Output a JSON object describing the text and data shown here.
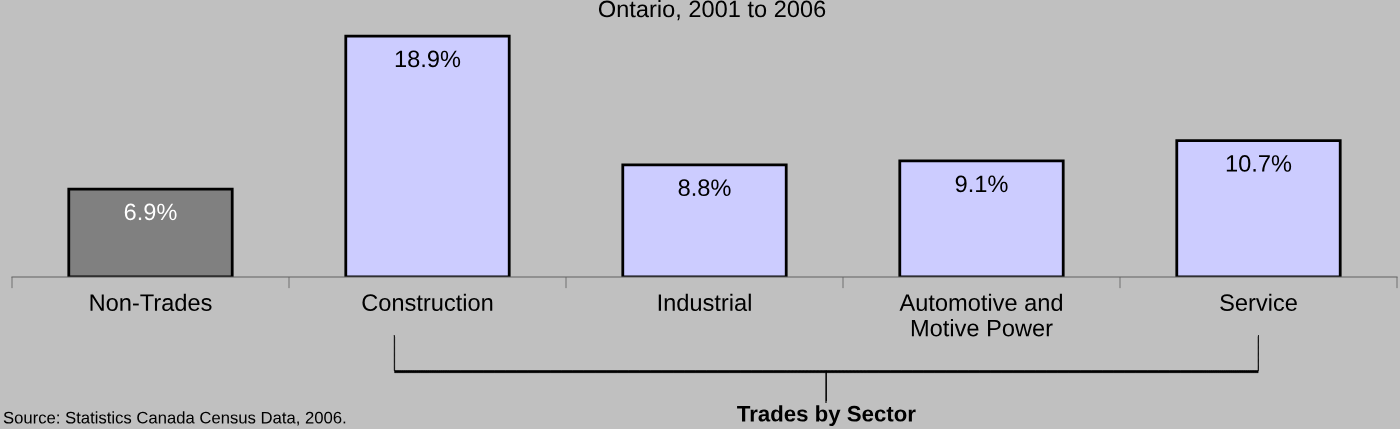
{
  "chart_data": {
    "type": "bar",
    "title": "Ontario, 2001 to 2006",
    "xlabel": "Trades by Sector",
    "categories": [
      "Non-Trades",
      "Construction",
      "Industrial",
      "Automotive and\nMotive Power",
      "Service"
    ],
    "values": [
      6.9,
      18.9,
      8.8,
      9.1,
      10.7
    ],
    "colors": [
      "#808080",
      "#ccccff",
      "#ccccff",
      "#ccccff",
      "#ccccff"
    ],
    "value_labels": [
      "6.9%",
      "18.9%",
      "8.8%",
      "9.1%",
      "10.7%"
    ],
    "annotations": [
      "Source: Statistics Canada Census Data, 2006."
    ]
  }
}
